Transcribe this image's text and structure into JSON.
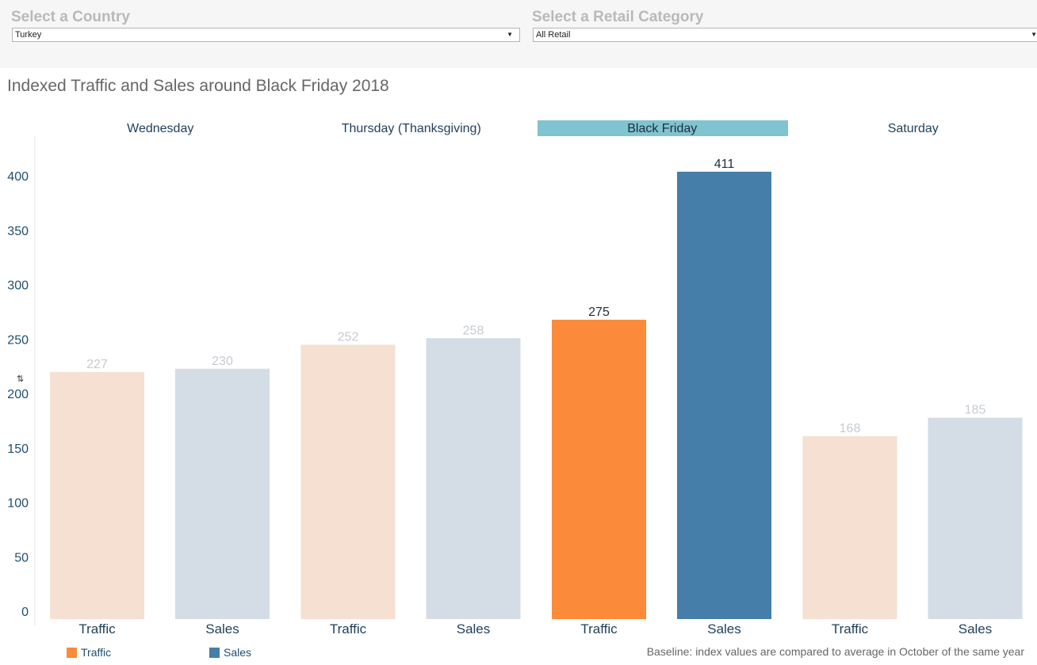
{
  "filters": {
    "country": {
      "label": "Select a Country",
      "value": "Turkey"
    },
    "category": {
      "label": "Select a Retail Category",
      "value": "All Retail"
    }
  },
  "title": "Indexed Traffic and Sales around Black Friday 2018",
  "footnote": "Baseline: index values are compared to average in October of the same year",
  "legend": [
    {
      "name": "Traffic",
      "color": "#fb8a3a"
    },
    {
      "name": "Sales",
      "color": "#457ea8"
    }
  ],
  "axis_tool_icon": "sort-axis-icon",
  "chart_data": {
    "type": "bar",
    "ylim": [
      0,
      440
    ],
    "yticks": [
      0,
      50,
      100,
      150,
      200,
      250,
      300,
      350,
      400
    ],
    "highlight_group": "Black Friday",
    "highlight_color": "#80c3d1",
    "colors": {
      "Traffic": {
        "active": "#fb8a3a",
        "muted": "#f5e0d1"
      },
      "Sales": {
        "active": "#457ea8",
        "muted": "#d4dce5"
      }
    },
    "label_colors": {
      "active": "#1f2d3d",
      "muted": "#c6cbd1"
    },
    "groups": [
      {
        "name": "Wednesday",
        "bars": [
          {
            "measure": "Traffic",
            "value": 227
          },
          {
            "measure": "Sales",
            "value": 230
          }
        ]
      },
      {
        "name": "Thursday (Thanksgiving)",
        "bars": [
          {
            "measure": "Traffic",
            "value": 252
          },
          {
            "measure": "Sales",
            "value": 258
          }
        ]
      },
      {
        "name": "Black Friday",
        "bars": [
          {
            "measure": "Traffic",
            "value": 275
          },
          {
            "measure": "Sales",
            "value": 411
          }
        ]
      },
      {
        "name": "Saturday",
        "bars": [
          {
            "measure": "Traffic",
            "value": 168
          },
          {
            "measure": "Sales",
            "value": 185
          }
        ]
      }
    ]
  }
}
